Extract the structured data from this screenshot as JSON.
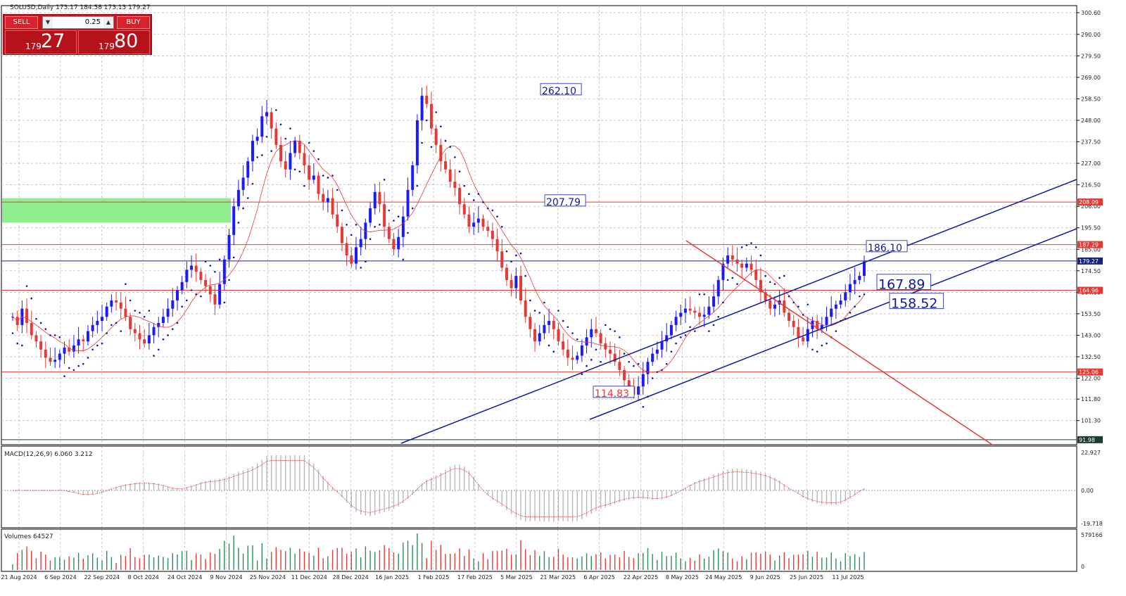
{
  "chart_data": {
    "type": "candlestick",
    "symbol_header": "SOLUSD,Daily  173.17 184.58 173.13 179.27",
    "y_ticks": [
      "300.60",
      "290.00",
      "279.50",
      "269.00",
      "258.50",
      "248.00",
      "237.50",
      "227.00",
      "216.50",
      "206.00",
      "195.50",
      "185.00",
      "174.50",
      "164.00",
      "153.50",
      "143.00",
      "132.50",
      "122.00",
      "111.80",
      "101.30"
    ],
    "x_ticks": [
      "21 Aug 2024",
      "6 Sep 2024",
      "22 Sep 2024",
      "8 Oct 2024",
      "24 Oct 2024",
      "9 Nov 2024",
      "25 Nov 2024",
      "11 Dec 2024",
      "28 Dec 2024",
      "16 Jan 2025",
      "1 Feb 2025",
      "17 Feb 2025",
      "5 Mar 2025",
      "21 Mar 2025",
      "6 Apr 2025",
      "22 Apr 2025",
      "8 May 2025",
      "24 May 2025",
      "9 Jun 2025",
      "25 Jun 2025",
      "11 Jul 2025"
    ],
    "hlines": [
      {
        "label": "208.09",
        "value": 208.09,
        "color": "#e53935"
      },
      {
        "label": "187.29",
        "value": 187.29,
        "color": "#e53935"
      },
      {
        "label": "179.27",
        "value": 179.27,
        "color": "#1a237e"
      },
      {
        "label": "164.96",
        "value": 164.96,
        "color": "#e53935"
      },
      {
        "label": "125.06",
        "value": 125.06,
        "color": "#e53935"
      },
      {
        "label": "91.98",
        "value": 91.98,
        "color": "#1b3b2b"
      }
    ],
    "annotations": [
      {
        "text": "262.10",
        "value": 262.1
      },
      {
        "text": "207.79",
        "value": 207.79
      },
      {
        "text": "186.10",
        "value": 186.1
      },
      {
        "text": "167.89",
        "value": 167.89
      },
      {
        "text": "158.52",
        "value": 158.52
      },
      {
        "text": "114.83",
        "value": 114.83
      }
    ],
    "support_zone": {
      "low": 198,
      "high": 210
    },
    "closes": [
      152,
      148,
      156,
      149,
      143,
      140,
      136,
      132,
      130,
      131,
      134,
      137,
      135,
      138,
      141,
      140,
      145,
      148,
      150,
      152,
      157,
      160,
      159,
      156,
      152,
      146,
      144,
      141,
      139,
      143,
      147,
      149,
      152,
      156,
      160,
      165,
      169,
      175,
      177,
      174,
      170,
      167,
      163,
      158,
      168,
      180,
      192,
      206,
      214,
      220,
      228,
      238,
      240,
      250,
      252,
      244,
      236,
      228,
      224,
      232,
      238,
      232,
      226,
      219,
      221,
      212,
      208,
      210,
      202,
      196,
      188,
      182,
      178,
      186,
      190,
      198,
      205,
      213,
      207,
      196,
      190,
      185,
      191,
      201,
      214,
      226,
      248,
      260,
      256,
      244,
      236,
      228,
      224,
      218,
      215,
      207,
      202,
      196,
      198,
      200,
      196,
      194,
      190,
      184,
      176,
      170,
      166,
      172,
      160,
      152,
      146,
      140,
      144,
      148,
      150,
      146,
      140,
      136,
      132,
      131,
      133,
      138,
      142,
      146,
      144,
      139,
      136,
      134,
      130,
      126,
      121,
      118,
      114,
      118,
      124,
      130,
      134,
      136,
      140,
      143,
      148,
      152,
      154,
      156,
      155,
      154,
      152,
      153,
      157,
      162,
      170,
      178,
      182,
      180,
      178,
      176,
      178,
      175,
      170,
      164,
      160,
      156,
      158,
      160,
      154,
      150,
      147,
      142,
      140,
      146,
      150,
      146,
      148,
      152,
      156,
      158,
      160,
      164,
      168,
      170,
      172,
      179
    ]
  },
  "macd": {
    "label": "MACD(12,26,9) 6.060 3.212",
    "ticks": [
      "22.927",
      "0.00",
      "-19.718"
    ]
  },
  "volumes": {
    "label": "Volumes 64527",
    "ticks": [
      "579166",
      "0"
    ]
  },
  "toolbar": {
    "sell": "SELL",
    "buy": "BUY",
    "volume": "0.25",
    "sell_big": "27",
    "sell_small": "179",
    "buy_big": "80",
    "buy_small": "179"
  }
}
